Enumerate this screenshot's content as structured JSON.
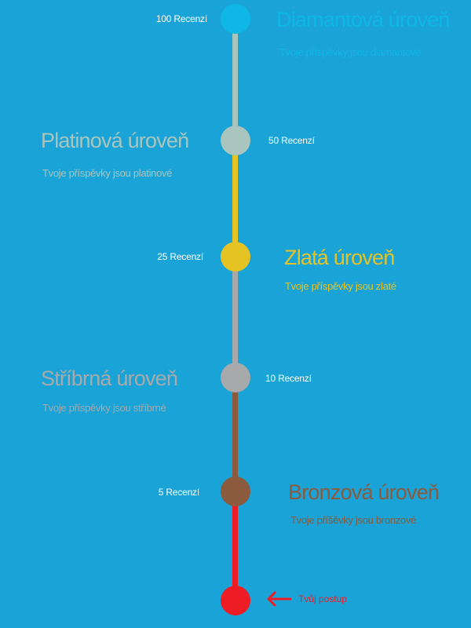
{
  "levels": [
    {
      "key": "diamond",
      "count": "100 Recenzí",
      "title": "Diamantová úroveň",
      "subtitle": "Tvoje příspěvky jsou diamantové",
      "color": "#0fb7e6"
    },
    {
      "key": "platinum",
      "count": "50 Recenzí",
      "title": "Platinová úroveň",
      "subtitle": "Tvoje příspěvky jsou platinové",
      "color": "#a9c5bd"
    },
    {
      "key": "gold",
      "count": "25 Recenzí",
      "title": "Zlatá úroveň",
      "subtitle": "Tvoje příspěvky jsou zlaté",
      "color": "#e5c325"
    },
    {
      "key": "silver",
      "count": "10 Recenzí",
      "title": "Stříbrná úroveň",
      "subtitle": "Tvoje příspěvky jsou stříbrné",
      "color": "#a7a9ab"
    },
    {
      "key": "bronze",
      "count": "5 Recenzí",
      "title": "Bronzová úroveň",
      "subtitle": "Tvoje příšěvky  jsou bronzové",
      "color": "#8c5a3c"
    }
  ],
  "progress": {
    "label": "Tvůj postup",
    "color": "#ee1c25"
  },
  "connectors": {
    "diamond_to_platinum": "#a9c5bd",
    "platinum_to_gold": "#e5c325",
    "gold_to_silver": "#a7a9ab",
    "silver_to_bronze": "#8c5a3c",
    "bronze_to_progress": "#ee1c25"
  }
}
